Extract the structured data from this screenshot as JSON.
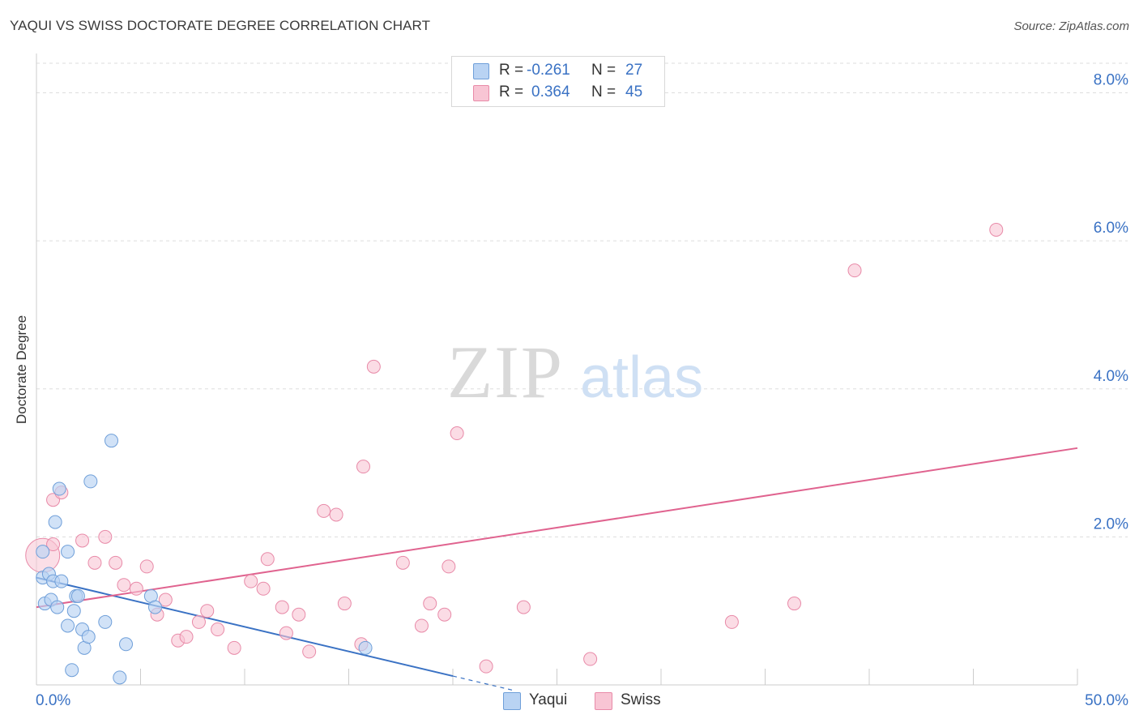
{
  "header": {
    "title": "YAQUI VS SWISS DOCTORATE DEGREE CORRELATION CHART",
    "source": "Source: ZipAtlas.com"
  },
  "watermark": {
    "zip": "ZIP",
    "atlas": "atlas"
  },
  "legend": {
    "yaqui": {
      "r_label": "R =",
      "r_value": "-0.261",
      "n_label": "N =",
      "n_value": "27"
    },
    "swiss": {
      "r_label": "R =",
      "r_value": "0.364",
      "n_label": "N =",
      "n_value": "45"
    }
  },
  "bottom_legend": {
    "yaqui": "Yaqui",
    "swiss": "Swiss"
  },
  "colors": {
    "yaqui_fill": "#b9d3f3",
    "yaqui_stroke": "#6f9fd9",
    "yaqui_line": "#3a72c4",
    "swiss_fill": "#f8c5d4",
    "swiss_stroke": "#e88aa8",
    "swiss_line": "#e0638f",
    "tick_label": "#3a72c4",
    "grid": "#dddddd"
  },
  "chart_data": {
    "type": "scatter",
    "title": "YAQUI VS SWISS DOCTORATE DEGREE CORRELATION CHART",
    "xlabel": "",
    "ylabel": "Doctorate Degree",
    "xlim": [
      0,
      50
    ],
    "ylim": [
      0,
      8.4
    ],
    "x_tick_labels": [
      "0.0%",
      "50.0%"
    ],
    "y_ticks": [
      2,
      4,
      6,
      8
    ],
    "y_tick_labels": [
      "2.0%",
      "4.0%",
      "6.0%",
      "8.0%"
    ],
    "grid": true,
    "legend_position": "top-center",
    "series": [
      {
        "name": "Yaqui",
        "points": [
          [
            0.3,
            1.8
          ],
          [
            0.3,
            1.45
          ],
          [
            0.4,
            1.1
          ],
          [
            0.6,
            1.5
          ],
          [
            0.7,
            1.15
          ],
          [
            0.8,
            1.4
          ],
          [
            0.9,
            2.2
          ],
          [
            1.0,
            1.05
          ],
          [
            1.1,
            2.65
          ],
          [
            1.2,
            1.4
          ],
          [
            1.5,
            1.8
          ],
          [
            1.5,
            0.8
          ],
          [
            1.7,
            0.2
          ],
          [
            1.8,
            1.0
          ],
          [
            1.9,
            1.2
          ],
          [
            2.0,
            1.2
          ],
          [
            2.2,
            0.75
          ],
          [
            2.3,
            0.5
          ],
          [
            2.5,
            0.65
          ],
          [
            2.6,
            2.75
          ],
          [
            3.3,
            0.85
          ],
          [
            3.6,
            3.3
          ],
          [
            4.0,
            0.1
          ],
          [
            4.3,
            0.55
          ],
          [
            5.5,
            1.2
          ],
          [
            5.7,
            1.05
          ],
          [
            15.8,
            0.5
          ]
        ],
        "trend": {
          "x": [
            0,
            20
          ],
          "y": [
            1.45,
            0.12
          ]
        }
      },
      {
        "name": "Swiss",
        "points": [
          [
            0.3,
            1.75
          ],
          [
            0.8,
            1.9
          ],
          [
            0.8,
            2.5
          ],
          [
            1.2,
            2.6
          ],
          [
            2.2,
            1.95
          ],
          [
            2.8,
            1.65
          ],
          [
            3.3,
            2.0
          ],
          [
            3.8,
            1.65
          ],
          [
            4.2,
            1.35
          ],
          [
            4.8,
            1.3
          ],
          [
            5.3,
            1.6
          ],
          [
            5.8,
            0.95
          ],
          [
            6.2,
            1.15
          ],
          [
            6.8,
            0.6
          ],
          [
            7.2,
            0.65
          ],
          [
            7.8,
            0.85
          ],
          [
            8.2,
            1.0
          ],
          [
            8.7,
            0.75
          ],
          [
            9.5,
            0.5
          ],
          [
            10.3,
            1.4
          ],
          [
            10.9,
            1.3
          ],
          [
            11.1,
            1.7
          ],
          [
            11.8,
            1.05
          ],
          [
            12.0,
            0.7
          ],
          [
            12.6,
            0.95
          ],
          [
            13.1,
            0.45
          ],
          [
            13.8,
            2.35
          ],
          [
            14.4,
            2.3
          ],
          [
            14.8,
            1.1
          ],
          [
            15.6,
            0.55
          ],
          [
            15.7,
            2.95
          ],
          [
            16.2,
            4.3
          ],
          [
            17.6,
            1.65
          ],
          [
            18.5,
            0.8
          ],
          [
            18.9,
            1.1
          ],
          [
            19.6,
            0.95
          ],
          [
            19.8,
            1.6
          ],
          [
            20.2,
            3.4
          ],
          [
            21.6,
            0.25
          ],
          [
            23.4,
            1.05
          ],
          [
            26.6,
            0.35
          ],
          [
            33.4,
            0.85
          ],
          [
            36.4,
            1.1
          ],
          [
            39.3,
            5.6
          ],
          [
            46.1,
            6.15
          ]
        ],
        "trend": {
          "x": [
            0,
            50
          ],
          "y": [
            1.05,
            3.2
          ]
        }
      }
    ]
  }
}
